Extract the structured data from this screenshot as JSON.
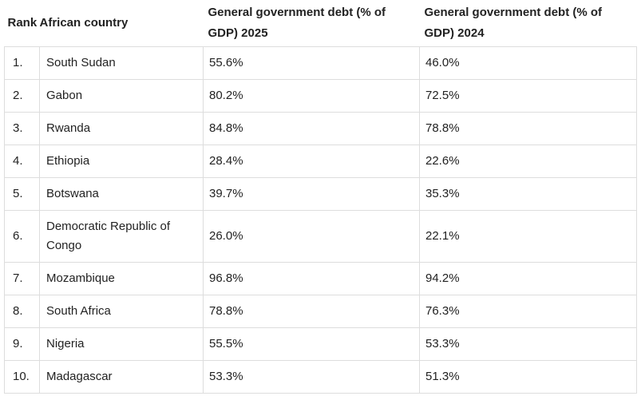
{
  "table": {
    "headers": {
      "rank": "Rank",
      "country": "African country",
      "debt_2025": "General government debt (% of GDP) 2025",
      "debt_2024": "General government debt (% of GDP) 2024"
    },
    "rows": [
      {
        "rank": "1.",
        "country": "South Sudan",
        "debt_2025": "55.6%",
        "debt_2024": "46.0%"
      },
      {
        "rank": "2.",
        "country": "Gabon",
        "debt_2025": "80.2%",
        "debt_2024": "72.5%"
      },
      {
        "rank": "3.",
        "country": "Rwanda",
        "debt_2025": "84.8%",
        "debt_2024": "78.8%"
      },
      {
        "rank": "4.",
        "country": "Ethiopia",
        "debt_2025": "28.4%",
        "debt_2024": "22.6%"
      },
      {
        "rank": "5.",
        "country": "Botswana",
        "debt_2025": "39.7%",
        "debt_2024": "35.3%"
      },
      {
        "rank": "6.",
        "country": "Democratic Republic of Congo",
        "debt_2025": "26.0%",
        "debt_2024": "22.1%"
      },
      {
        "rank": "7.",
        "country": "Mozambique",
        "debt_2025": "96.8%",
        "debt_2024": "94.2%"
      },
      {
        "rank": "8.",
        "country": "South Africa",
        "debt_2025": "78.8%",
        "debt_2024": "76.3%"
      },
      {
        "rank": "9.",
        "country": "Nigeria",
        "debt_2025": "55.5%",
        "debt_2024": "53.3%"
      },
      {
        "rank": "10.",
        "country": "Madagascar",
        "debt_2025": "53.3%",
        "debt_2024": "51.3%"
      }
    ]
  }
}
